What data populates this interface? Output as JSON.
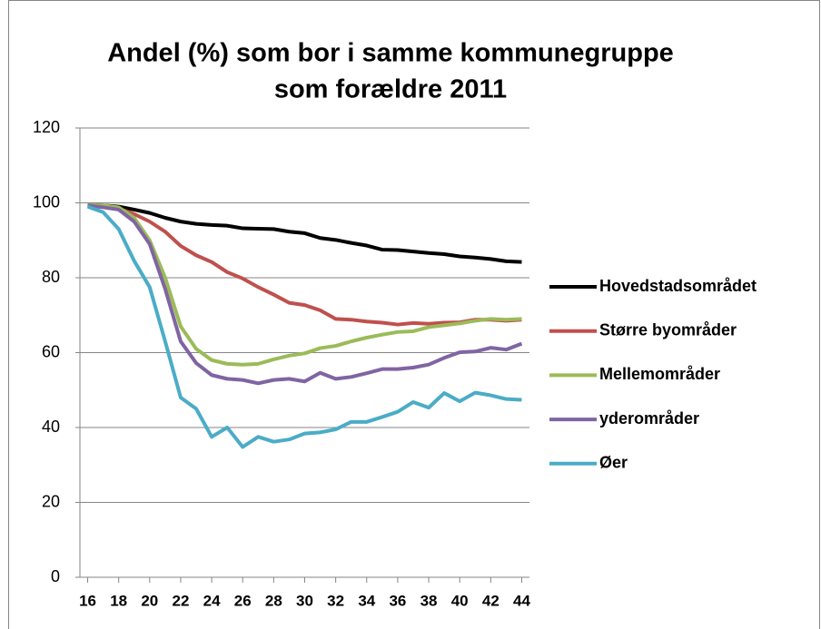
{
  "chart_data": {
    "type": "line",
    "title": [
      "Andel (%) som bor i samme kommunegruppe",
      "som forældre 2011"
    ],
    "x": [
      16,
      17,
      18,
      19,
      20,
      21,
      22,
      23,
      24,
      25,
      26,
      27,
      28,
      29,
      30,
      31,
      32,
      33,
      34,
      35,
      36,
      37,
      38,
      39,
      40,
      41,
      42,
      43,
      44
    ],
    "xlim": [
      15.5,
      44.5
    ],
    "xticks": [
      16,
      18,
      20,
      22,
      24,
      26,
      28,
      30,
      32,
      34,
      36,
      38,
      40,
      42,
      44
    ],
    "ylim": [
      0,
      120
    ],
    "yticks": [
      0,
      20,
      40,
      60,
      80,
      100,
      120
    ],
    "grid": true,
    "legend": "right",
    "series": [
      {
        "name": "Hovedstadsområdet",
        "color": "#000000",
        "values": [
          99.5,
          99.3,
          99,
          98.2,
          97.3,
          96,
          95,
          94.4,
          94.1,
          93.9,
          93.2,
          93.1,
          93,
          92.3,
          91.9,
          90.6,
          90.1,
          89.3,
          88.6,
          87.5,
          87.4,
          87,
          86.6,
          86.3,
          85.7,
          85.4,
          85,
          84.4,
          84.2
        ]
      },
      {
        "name": "Større byområder",
        "color": "#c0504d",
        "values": [
          99.5,
          99,
          98.5,
          97,
          95,
          92.3,
          88.5,
          86,
          84.2,
          81.5,
          79.8,
          77.5,
          75.5,
          73.3,
          72.7,
          71.3,
          69,
          68.8,
          68.3,
          68,
          67.5,
          67.9,
          67.7,
          68,
          68.1,
          68.8,
          68.8,
          68.5,
          68.8
        ]
      },
      {
        "name": "Mellemområder",
        "color": "#9bbb59",
        "values": [
          99.5,
          99.3,
          98.8,
          96,
          90,
          80,
          67,
          61,
          58,
          57,
          56.8,
          57,
          58.2,
          59.2,
          59.8,
          61.2,
          61.8,
          63,
          64,
          64.8,
          65.5,
          65.7,
          66.8,
          67.3,
          67.8,
          68.5,
          69,
          68.8,
          69
        ]
      },
      {
        "name": "yderområder",
        "color": "#8064a2",
        "values": [
          99.3,
          98.8,
          98.2,
          95,
          89,
          77,
          63,
          57.2,
          54,
          53,
          52.7,
          51.8,
          52.7,
          53,
          52.3,
          54.6,
          53,
          53.5,
          54.5,
          55.6,
          55.6,
          56,
          56.8,
          58.6,
          60.1,
          60.3,
          61.3,
          60.8,
          62.4
        ]
      },
      {
        "name": "Øer",
        "color": "#4bacc6",
        "values": [
          99,
          97.5,
          93,
          84.5,
          77.5,
          63,
          48,
          45,
          37.5,
          40,
          34.8,
          37.5,
          36.2,
          36.8,
          38.4,
          38.7,
          39.5,
          41.5,
          41.5,
          42.8,
          44.2,
          46.8,
          45.3,
          49.2,
          47,
          49.3,
          48.6,
          47.6,
          47.4
        ]
      }
    ]
  }
}
